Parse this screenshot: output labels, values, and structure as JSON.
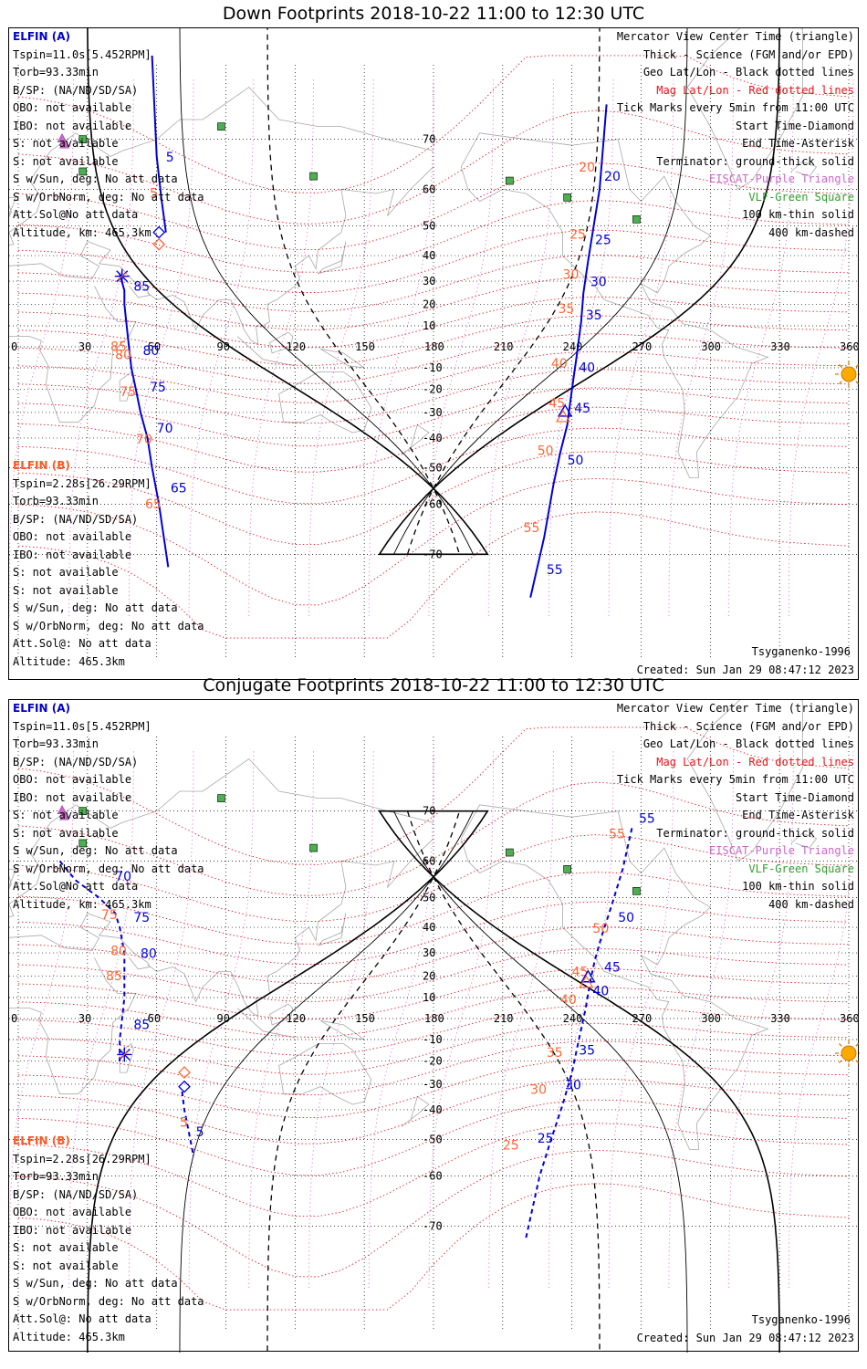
{
  "colors": {
    "track_blue": "#0000dd",
    "track_red": "#ff6633",
    "mag_grid": "#e8121a",
    "geo_grid": "#000000",
    "coast": "#a8a8a8",
    "terminator": "#000000",
    "eiscat": "#cc66cc",
    "vlf": "#4caf50",
    "sun": "#ffaa00"
  },
  "icons": {
    "sun": "sun-icon",
    "start": "diamond-icon",
    "end": "asterisk-icon",
    "center": "triangle-icon",
    "vlf": "green-square-icon",
    "eiscat": "purple-triangle-icon"
  },
  "axes": {
    "lon_ticks": [
      "0",
      "30",
      "60",
      "90",
      "120",
      "150",
      "180",
      "210",
      "240",
      "270",
      "300",
      "330",
      "360"
    ],
    "lat_ticks": [
      "70",
      "60",
      "50",
      "40",
      "30",
      "20",
      "10",
      "-10",
      "-20",
      "-30",
      "-40",
      "-50",
      "-60",
      "-70"
    ]
  },
  "legend": {
    "line1": "Mercator View Center Time (triangle)",
    "line2": "Thick - Science (FGM and/or EPD)",
    "line3": "Geo Lat/Lon - Black dotted lines",
    "line4": "Mag Lat/Lon - Red dotted lines",
    "line5": "Tick Marks every 5min from 11:00 UTC",
    "line6": "Start Time-Diamond",
    "line7": "End Time-Asterisk",
    "line8": "Terminator: ground-thick solid",
    "line9": "EISCAT-Purple Triangle",
    "line10": "VLF-Green Square",
    "line11": "100 km-thin solid",
    "line12": "400 km-dashed"
  },
  "elfin_a": {
    "header": "ELFIN (A)",
    "tspin": "Tspin=11.0s[5.452RPM]",
    "torb": "Torb=93.33min",
    "bsp": "B/SP: (NA/ND/SD/SA)",
    "obo": "OBO: not available",
    "ibo": "IBO: not available",
    "s1": "S: not available",
    "s2": "S: not available",
    "s_sun": "S w/Sun, deg: No att data",
    "s_orb": "S w/OrbNorm, deg: No att data",
    "attsol": "Att.Sol@No att data",
    "altitude": "Altitude, km: 465.3km"
  },
  "elfin_b": {
    "header": "ELFIN (B)",
    "tspin": "Tspin=2.28s[26.29RPM]",
    "torb": "Torb=93.33min",
    "bsp": "B/SP: (NA/ND/SD/SA)",
    "obo": "OBO: not available",
    "ibo": "IBO: not available",
    "s1": "S: not available",
    "s2": "S: not available",
    "s_sun": "S w/Sun, deg: No att data",
    "s_orb": "S w/OrbNorm, deg: No att data",
    "attsol": "Att.Sol@: No att data",
    "altitude": "Altitude: 465.3km"
  },
  "footer": {
    "model": "Tsyganenko-1996",
    "created": "Created: Sun Jan 29 08:47:12 2023"
  },
  "panels": [
    {
      "title": "Down Footprints 2018-10-22 11:00 to 12:30 UTC",
      "track_style": "solid",
      "track_a": {
        "lon": [
          58,
          57,
          53,
          50
        ],
        "lat": [
          78,
          70,
          55,
          44
        ],
        "label_lon": [
          60,
          0
        ],
        "labels": [
          "5"
        ]
      },
      "tracks": {
        "a_north": {
          "points": [
            [
              58,
              80
            ],
            [
              60,
              67
            ],
            [
              62,
              58
            ],
            [
              64,
              48
            ]
          ],
          "labels": [
            {
              "t": "5",
              "lon": 64,
              "lat": 66,
              "c": "blue"
            },
            {
              "t": "5",
              "lon": 57,
              "lat": 58,
              "c": "red"
            }
          ]
        },
        "a_mid": {
          "points": [
            [
              44,
              33
            ],
            [
              46,
              26
            ],
            [
              46,
              20
            ],
            [
              47,
              10
            ],
            [
              48,
              0
            ],
            [
              49,
              -10
            ],
            [
              51,
              -20
            ],
            [
              53,
              -30
            ],
            [
              56,
              -40
            ],
            [
              58,
              -50
            ],
            [
              61,
              -60
            ],
            [
              65,
              -72
            ]
          ],
          "labels": [
            {
              "t": "85",
              "lon": 50,
              "lat": 26,
              "c": "blue"
            },
            {
              "t": "85",
              "lon": 40,
              "lat": -2,
              "c": "red"
            },
            {
              "t": "80",
              "lon": 54,
              "lat": -4,
              "c": "blue"
            },
            {
              "t": "80",
              "lon": 42,
              "lat": -6,
              "c": "red"
            },
            {
              "t": "75",
              "lon": 57,
              "lat": -21,
              "c": "blue"
            },
            {
              "t": "75",
              "lon": 44,
              "lat": -23,
              "c": "red"
            },
            {
              "t": "70",
              "lon": 60,
              "lat": -38,
              "c": "blue"
            },
            {
              "t": "70",
              "lon": 51,
              "lat": -42,
              "c": "red"
            },
            {
              "t": "65",
              "lon": 66,
              "lat": -57,
              "c": "blue"
            },
            {
              "t": "65",
              "lon": 55,
              "lat": -61,
              "c": "red"
            }
          ]
        },
        "b_east": {
          "points": [
            [
              255,
              75
            ],
            [
              252,
              60
            ],
            [
              249,
              48
            ],
            [
              247,
              38
            ],
            [
              245,
              25
            ],
            [
              244,
              12
            ],
            [
              242,
              -5
            ],
            [
              240,
              -20
            ],
            [
              238,
              -35
            ],
            [
              235,
              -45
            ],
            [
              232,
              -55
            ],
            [
              228,
              -67
            ],
            [
              222,
              -76
            ]
          ],
          "labels": [
            {
              "t": "20",
              "lon": 254,
              "lat": 62,
              "c": "blue"
            },
            {
              "t": "20",
              "lon": 243,
              "lat": 64,
              "c": "red"
            },
            {
              "t": "25",
              "lon": 250,
              "lat": 44,
              "c": "blue"
            },
            {
              "t": "25",
              "lon": 239,
              "lat": 46,
              "c": "red"
            },
            {
              "t": "30",
              "lon": 248,
              "lat": 28,
              "c": "blue"
            },
            {
              "t": "30",
              "lon": 236,
              "lat": 31,
              "c": "red"
            },
            {
              "t": "35",
              "lon": 246,
              "lat": 13,
              "c": "blue"
            },
            {
              "t": "35",
              "lon": 234,
              "lat": 16,
              "c": "red"
            },
            {
              "t": "40",
              "lon": 243,
              "lat": -12,
              "c": "blue"
            },
            {
              "t": "40",
              "lon": 231,
              "lat": -10,
              "c": "red"
            },
            {
              "t": "45",
              "lon": 241,
              "lat": -30,
              "c": "blue"
            },
            {
              "t": "45",
              "lon": 230,
              "lat": -28,
              "c": "red"
            },
            {
              "t": "50",
              "lon": 238,
              "lat": -49,
              "c": "blue"
            },
            {
              "t": "50",
              "lon": 225,
              "lat": -46,
              "c": "red"
            },
            {
              "t": "55",
              "lon": 229,
              "lat": -73,
              "c": "blue"
            },
            {
              "t": "55",
              "lon": 219,
              "lat": -66,
              "c": "red"
            }
          ]
        }
      },
      "start_a": {
        "lon": 61,
        "lat": 48
      },
      "start_b": {
        "lon": 61,
        "lat": 44
      },
      "end_a": {
        "lon": 45,
        "lat": 32
      },
      "center": {
        "lon": 237,
        "lat": -30
      }
    },
    {
      "title": "Conjugate Footprints 2018-10-22 11:00 to 12:30 UTC",
      "track_style": "dashed",
      "tracks": {
        "a_north": {
          "points": [
            [
              18,
              60
            ],
            [
              25,
              55
            ],
            [
              35,
              50
            ],
            [
              42,
              45
            ],
            [
              44,
              40
            ],
            [
              45,
              35
            ],
            [
              46,
              30
            ],
            [
              46,
              20
            ],
            [
              46,
              10
            ],
            [
              45,
              0
            ],
            [
              44,
              -10
            ],
            [
              44,
              -20
            ]
          ],
          "labels": [
            {
              "t": "70",
              "lon": 42,
              "lat": 55,
              "c": "blue"
            },
            {
              "t": "75",
              "lon": 50,
              "lat": 42,
              "c": "blue"
            },
            {
              "t": "75",
              "lon": 36,
              "lat": 43,
              "c": "red"
            },
            {
              "t": "80",
              "lon": 53,
              "lat": 28,
              "c": "blue"
            },
            {
              "t": "80",
              "lon": 40,
              "lat": 29,
              "c": "red"
            },
            {
              "t": "85",
              "lon": 50,
              "lat": -5,
              "c": "blue"
            },
            {
              "t": "85",
              "lon": 38,
              "lat": 18,
              "c": "red"
            }
          ]
        },
        "a_south": {
          "points": [
            [
              71,
              -33
            ],
            [
              72,
              -40
            ],
            [
              74,
              -48
            ],
            [
              76,
              -55
            ]
          ],
          "labels": [
            {
              "t": "5",
              "lon": 77,
              "lat": -49,
              "c": "blue"
            },
            {
              "t": "5",
              "lon": 70,
              "lat": -46,
              "c": "red"
            }
          ]
        },
        "b_east": {
          "points": [
            [
              266,
              67
            ],
            [
              262,
              58
            ],
            [
              257,
              47
            ],
            [
              253,
              37
            ],
            [
              250,
              27
            ],
            [
              248,
              18
            ],
            [
              246,
              5
            ],
            [
              243,
              -10
            ],
            [
              240,
              -25
            ],
            [
              236,
              -38
            ],
            [
              231,
              -50
            ],
            [
              226,
              -60
            ],
            [
              220,
              -72
            ]
          ],
          "labels": [
            {
              "t": "55",
              "lon": 269,
              "lat": 68,
              "c": "blue"
            },
            {
              "t": "55",
              "lon": 256,
              "lat": 65,
              "c": "red"
            },
            {
              "t": "50",
              "lon": 260,
              "lat": 42,
              "c": "blue"
            },
            {
              "t": "50",
              "lon": 249,
              "lat": 38,
              "c": "red"
            },
            {
              "t": "45",
              "lon": 254,
              "lat": 22,
              "c": "blue"
            },
            {
              "t": "45",
              "lon": 240,
              "lat": 20,
              "c": "red"
            },
            {
              "t": "40",
              "lon": 249,
              "lat": 11,
              "c": "blue"
            },
            {
              "t": "40",
              "lon": 235,
              "lat": 7,
              "c": "red"
            },
            {
              "t": "35",
              "lon": 243,
              "lat": -17,
              "c": "blue"
            },
            {
              "t": "35",
              "lon": 229,
              "lat": -18,
              "c": "red"
            },
            {
              "t": "30",
              "lon": 237,
              "lat": -32,
              "c": "blue"
            },
            {
              "t": "30",
              "lon": 222,
              "lat": -34,
              "c": "red"
            },
            {
              "t": "25",
              "lon": 225,
              "lat": -51,
              "c": "blue"
            },
            {
              "t": "25",
              "lon": 210,
              "lat": -53,
              "c": "red"
            }
          ]
        }
      },
      "start_a": {
        "lon": 72,
        "lat": -31
      },
      "start_b": {
        "lon": 72,
        "lat": -25
      },
      "end_a": {
        "lon": 46,
        "lat": -17
      },
      "center": {
        "lon": 247,
        "lat": 19
      }
    }
  ]
}
